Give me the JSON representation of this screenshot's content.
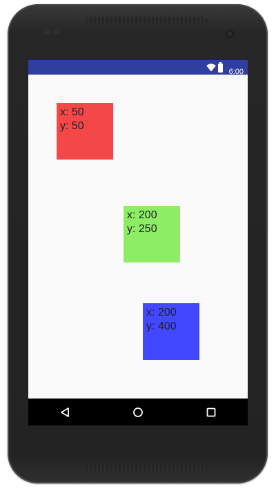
{
  "status_bar": {
    "time": "6:00",
    "color": "#303f9f",
    "icons": [
      "wifi-icon",
      "battery-icon"
    ]
  },
  "boxes": [
    {
      "name": "box-red",
      "color": "#f44848",
      "x_label": "x: 50",
      "y_label": "y: 50"
    },
    {
      "name": "box-green",
      "color": "#8dee66",
      "x_label": "x: 200",
      "y_label": "y: 250"
    },
    {
      "name": "box-blue",
      "color": "#4148ff",
      "x_label": "x: 200",
      "y_label": "y: 400"
    }
  ],
  "nav_bar": {
    "buttons": [
      "back-icon",
      "home-icon",
      "recents-icon"
    ]
  }
}
